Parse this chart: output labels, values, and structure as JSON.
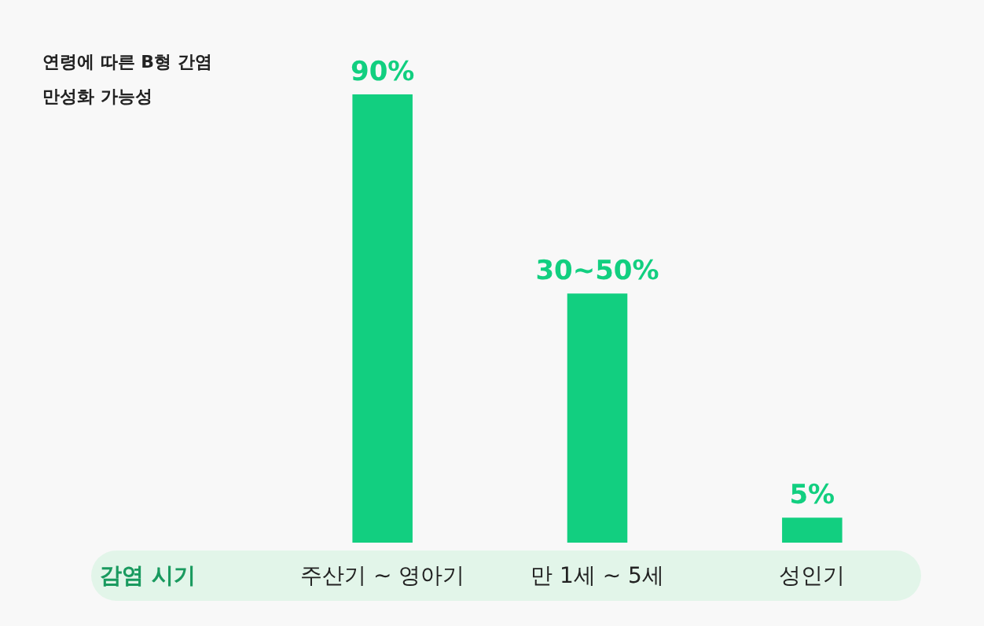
{
  "chart_data": {
    "type": "bar",
    "title": "연령에 따른 B형 간염\n만성화 가능성",
    "xlabel": "감염 시기",
    "categories": [
      "주산기 ~ 영아기",
      "만 1세 ~ 5세",
      "성인기"
    ],
    "values": [
      90,
      50,
      5
    ],
    "value_labels": [
      "90%",
      "30~50%",
      "5%"
    ],
    "color": "#12cf80"
  }
}
